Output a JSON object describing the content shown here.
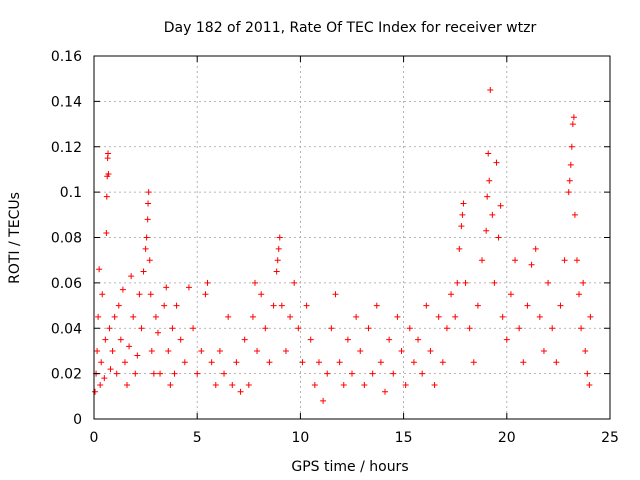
{
  "chart_data": {
    "type": "scatter",
    "title": "Day 182 of 2011, Rate Of TEC Index for receiver wtzr",
    "xlabel": "GPS time / hours",
    "ylabel": "ROTI / TECUs",
    "xlim": [
      0,
      25
    ],
    "ylim": [
      0,
      0.16
    ],
    "x_ticks": [
      0,
      5,
      10,
      15,
      20,
      25
    ],
    "x_tick_labels": [
      "0",
      "5",
      "10",
      "15",
      "20",
      "25"
    ],
    "y_ticks": [
      0,
      0.02,
      0.04,
      0.06,
      0.08,
      0.1,
      0.12,
      0.14,
      0.16
    ],
    "y_tick_labels": [
      "0",
      "0.02",
      "0.04",
      "0.06",
      "0.08",
      "0.1",
      "0.12",
      "0.14",
      "0.16"
    ],
    "grid": true,
    "marker": "plus",
    "color": "#ff0000",
    "series": [
      {
        "points": [
          [
            0.05,
            0.012
          ],
          [
            0.1,
            0.02
          ],
          [
            0.15,
            0.03
          ],
          [
            0.2,
            0.045
          ],
          [
            0.25,
            0.066
          ],
          [
            0.3,
            0.015
          ],
          [
            0.35,
            0.025
          ],
          [
            0.4,
            0.055
          ],
          [
            0.5,
            0.018
          ],
          [
            0.55,
            0.035
          ],
          [
            0.6,
            0.082
          ],
          [
            0.62,
            0.098
          ],
          [
            0.64,
            0.107
          ],
          [
            0.66,
            0.115
          ],
          [
            0.68,
            0.117
          ],
          [
            0.7,
            0.108
          ],
          [
            0.75,
            0.04
          ],
          [
            0.8,
            0.022
          ],
          [
            0.9,
            0.03
          ],
          [
            1.0,
            0.045
          ],
          [
            1.1,
            0.02
          ],
          [
            1.2,
            0.05
          ],
          [
            1.3,
            0.035
          ],
          [
            1.4,
            0.057
          ],
          [
            1.5,
            0.025
          ],
          [
            1.6,
            0.015
          ],
          [
            1.7,
            0.032
          ],
          [
            1.8,
            0.063
          ],
          [
            1.9,
            0.045
          ],
          [
            2.0,
            0.02
          ],
          [
            2.1,
            0.028
          ],
          [
            2.2,
            0.055
          ],
          [
            2.3,
            0.04
          ],
          [
            2.4,
            0.065
          ],
          [
            2.5,
            0.075
          ],
          [
            2.55,
            0.08
          ],
          [
            2.6,
            0.088
          ],
          [
            2.62,
            0.095
          ],
          [
            2.65,
            0.1
          ],
          [
            2.7,
            0.07
          ],
          [
            2.75,
            0.055
          ],
          [
            2.8,
            0.03
          ],
          [
            2.9,
            0.02
          ],
          [
            3.0,
            0.045
          ],
          [
            3.1,
            0.038
          ],
          [
            3.2,
            0.02
          ],
          [
            3.4,
            0.05
          ],
          [
            3.5,
            0.058
          ],
          [
            3.6,
            0.03
          ],
          [
            3.7,
            0.015
          ],
          [
            3.8,
            0.04
          ],
          [
            3.9,
            0.02
          ],
          [
            4.0,
            0.05
          ],
          [
            4.2,
            0.035
          ],
          [
            4.4,
            0.025
          ],
          [
            4.6,
            0.058
          ],
          [
            4.8,
            0.04
          ],
          [
            5.0,
            0.02
          ],
          [
            5.2,
            0.03
          ],
          [
            5.4,
            0.055
          ],
          [
            5.5,
            0.06
          ],
          [
            5.7,
            0.025
          ],
          [
            5.9,
            0.015
          ],
          [
            6.1,
            0.03
          ],
          [
            6.3,
            0.02
          ],
          [
            6.5,
            0.045
          ],
          [
            6.7,
            0.015
          ],
          [
            6.9,
            0.025
          ],
          [
            7.1,
            0.012
          ],
          [
            7.3,
            0.035
          ],
          [
            7.5,
            0.015
          ],
          [
            7.7,
            0.045
          ],
          [
            7.8,
            0.06
          ],
          [
            7.9,
            0.03
          ],
          [
            8.1,
            0.055
          ],
          [
            8.3,
            0.04
          ],
          [
            8.5,
            0.025
          ],
          [
            8.7,
            0.05
          ],
          [
            8.85,
            0.065
          ],
          [
            8.9,
            0.07
          ],
          [
            8.95,
            0.075
          ],
          [
            9.0,
            0.08
          ],
          [
            9.1,
            0.05
          ],
          [
            9.3,
            0.03
          ],
          [
            9.5,
            0.045
          ],
          [
            9.7,
            0.06
          ],
          [
            9.9,
            0.04
          ],
          [
            10.1,
            0.025
          ],
          [
            10.3,
            0.05
          ],
          [
            10.5,
            0.035
          ],
          [
            10.7,
            0.015
          ],
          [
            10.9,
            0.025
          ],
          [
            11.1,
            0.008
          ],
          [
            11.3,
            0.02
          ],
          [
            11.5,
            0.04
          ],
          [
            11.7,
            0.055
          ],
          [
            11.9,
            0.025
          ],
          [
            12.1,
            0.015
          ],
          [
            12.3,
            0.035
          ],
          [
            12.5,
            0.02
          ],
          [
            12.7,
            0.045
          ],
          [
            12.9,
            0.03
          ],
          [
            13.1,
            0.015
          ],
          [
            13.3,
            0.04
          ],
          [
            13.5,
            0.02
          ],
          [
            13.7,
            0.05
          ],
          [
            13.9,
            0.025
          ],
          [
            14.1,
            0.012
          ],
          [
            14.3,
            0.035
          ],
          [
            14.5,
            0.02
          ],
          [
            14.7,
            0.045
          ],
          [
            14.9,
            0.03
          ],
          [
            15.1,
            0.015
          ],
          [
            15.3,
            0.04
          ],
          [
            15.5,
            0.025
          ],
          [
            15.7,
            0.035
          ],
          [
            15.9,
            0.02
          ],
          [
            16.1,
            0.05
          ],
          [
            16.3,
            0.03
          ],
          [
            16.5,
            0.015
          ],
          [
            16.7,
            0.045
          ],
          [
            16.9,
            0.025
          ],
          [
            17.1,
            0.04
          ],
          [
            17.3,
            0.055
          ],
          [
            17.5,
            0.045
          ],
          [
            17.6,
            0.06
          ],
          [
            17.7,
            0.075
          ],
          [
            17.8,
            0.085
          ],
          [
            17.85,
            0.09
          ],
          [
            17.9,
            0.095
          ],
          [
            18.0,
            0.06
          ],
          [
            18.2,
            0.04
          ],
          [
            18.4,
            0.025
          ],
          [
            18.6,
            0.05
          ],
          [
            18.8,
            0.07
          ],
          [
            19.0,
            0.083
          ],
          [
            19.05,
            0.098
          ],
          [
            19.1,
            0.117
          ],
          [
            19.15,
            0.105
          ],
          [
            19.2,
            0.145
          ],
          [
            19.3,
            0.09
          ],
          [
            19.4,
            0.06
          ],
          [
            19.5,
            0.113
          ],
          [
            19.6,
            0.08
          ],
          [
            19.7,
            0.094
          ],
          [
            19.8,
            0.045
          ],
          [
            20.0,
            0.035
          ],
          [
            20.2,
            0.055
          ],
          [
            20.4,
            0.07
          ],
          [
            20.6,
            0.04
          ],
          [
            20.8,
            0.025
          ],
          [
            21.0,
            0.05
          ],
          [
            21.2,
            0.068
          ],
          [
            21.4,
            0.075
          ],
          [
            21.6,
            0.045
          ],
          [
            21.8,
            0.03
          ],
          [
            22.0,
            0.06
          ],
          [
            22.2,
            0.04
          ],
          [
            22.4,
            0.025
          ],
          [
            22.6,
            0.05
          ],
          [
            22.8,
            0.07
          ],
          [
            23.0,
            0.1
          ],
          [
            23.05,
            0.105
          ],
          [
            23.1,
            0.112
          ],
          [
            23.15,
            0.12
          ],
          [
            23.2,
            0.13
          ],
          [
            23.25,
            0.133
          ],
          [
            23.3,
            0.09
          ],
          [
            23.4,
            0.07
          ],
          [
            23.5,
            0.055
          ],
          [
            23.6,
            0.04
          ],
          [
            23.7,
            0.06
          ],
          [
            23.8,
            0.03
          ],
          [
            23.9,
            0.02
          ],
          [
            24.0,
            0.015
          ],
          [
            24.05,
            0.045
          ]
        ]
      }
    ]
  }
}
